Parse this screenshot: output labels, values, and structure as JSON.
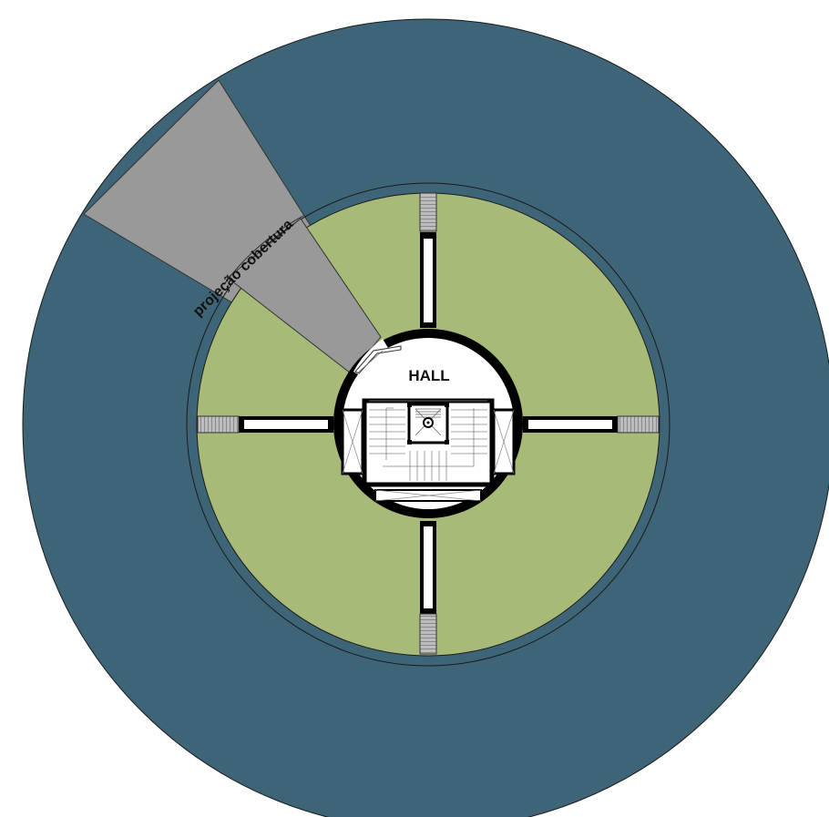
{
  "plan": {
    "hall_label": "HALL",
    "roof_projection_label": "projeção cobertura",
    "colors": {
      "outer_ring": "#3d6577",
      "garden": "#a8ba78",
      "roof_projection": "#999999",
      "core": "#ffffff",
      "wall": "#000000",
      "background": "#ffffff"
    }
  }
}
